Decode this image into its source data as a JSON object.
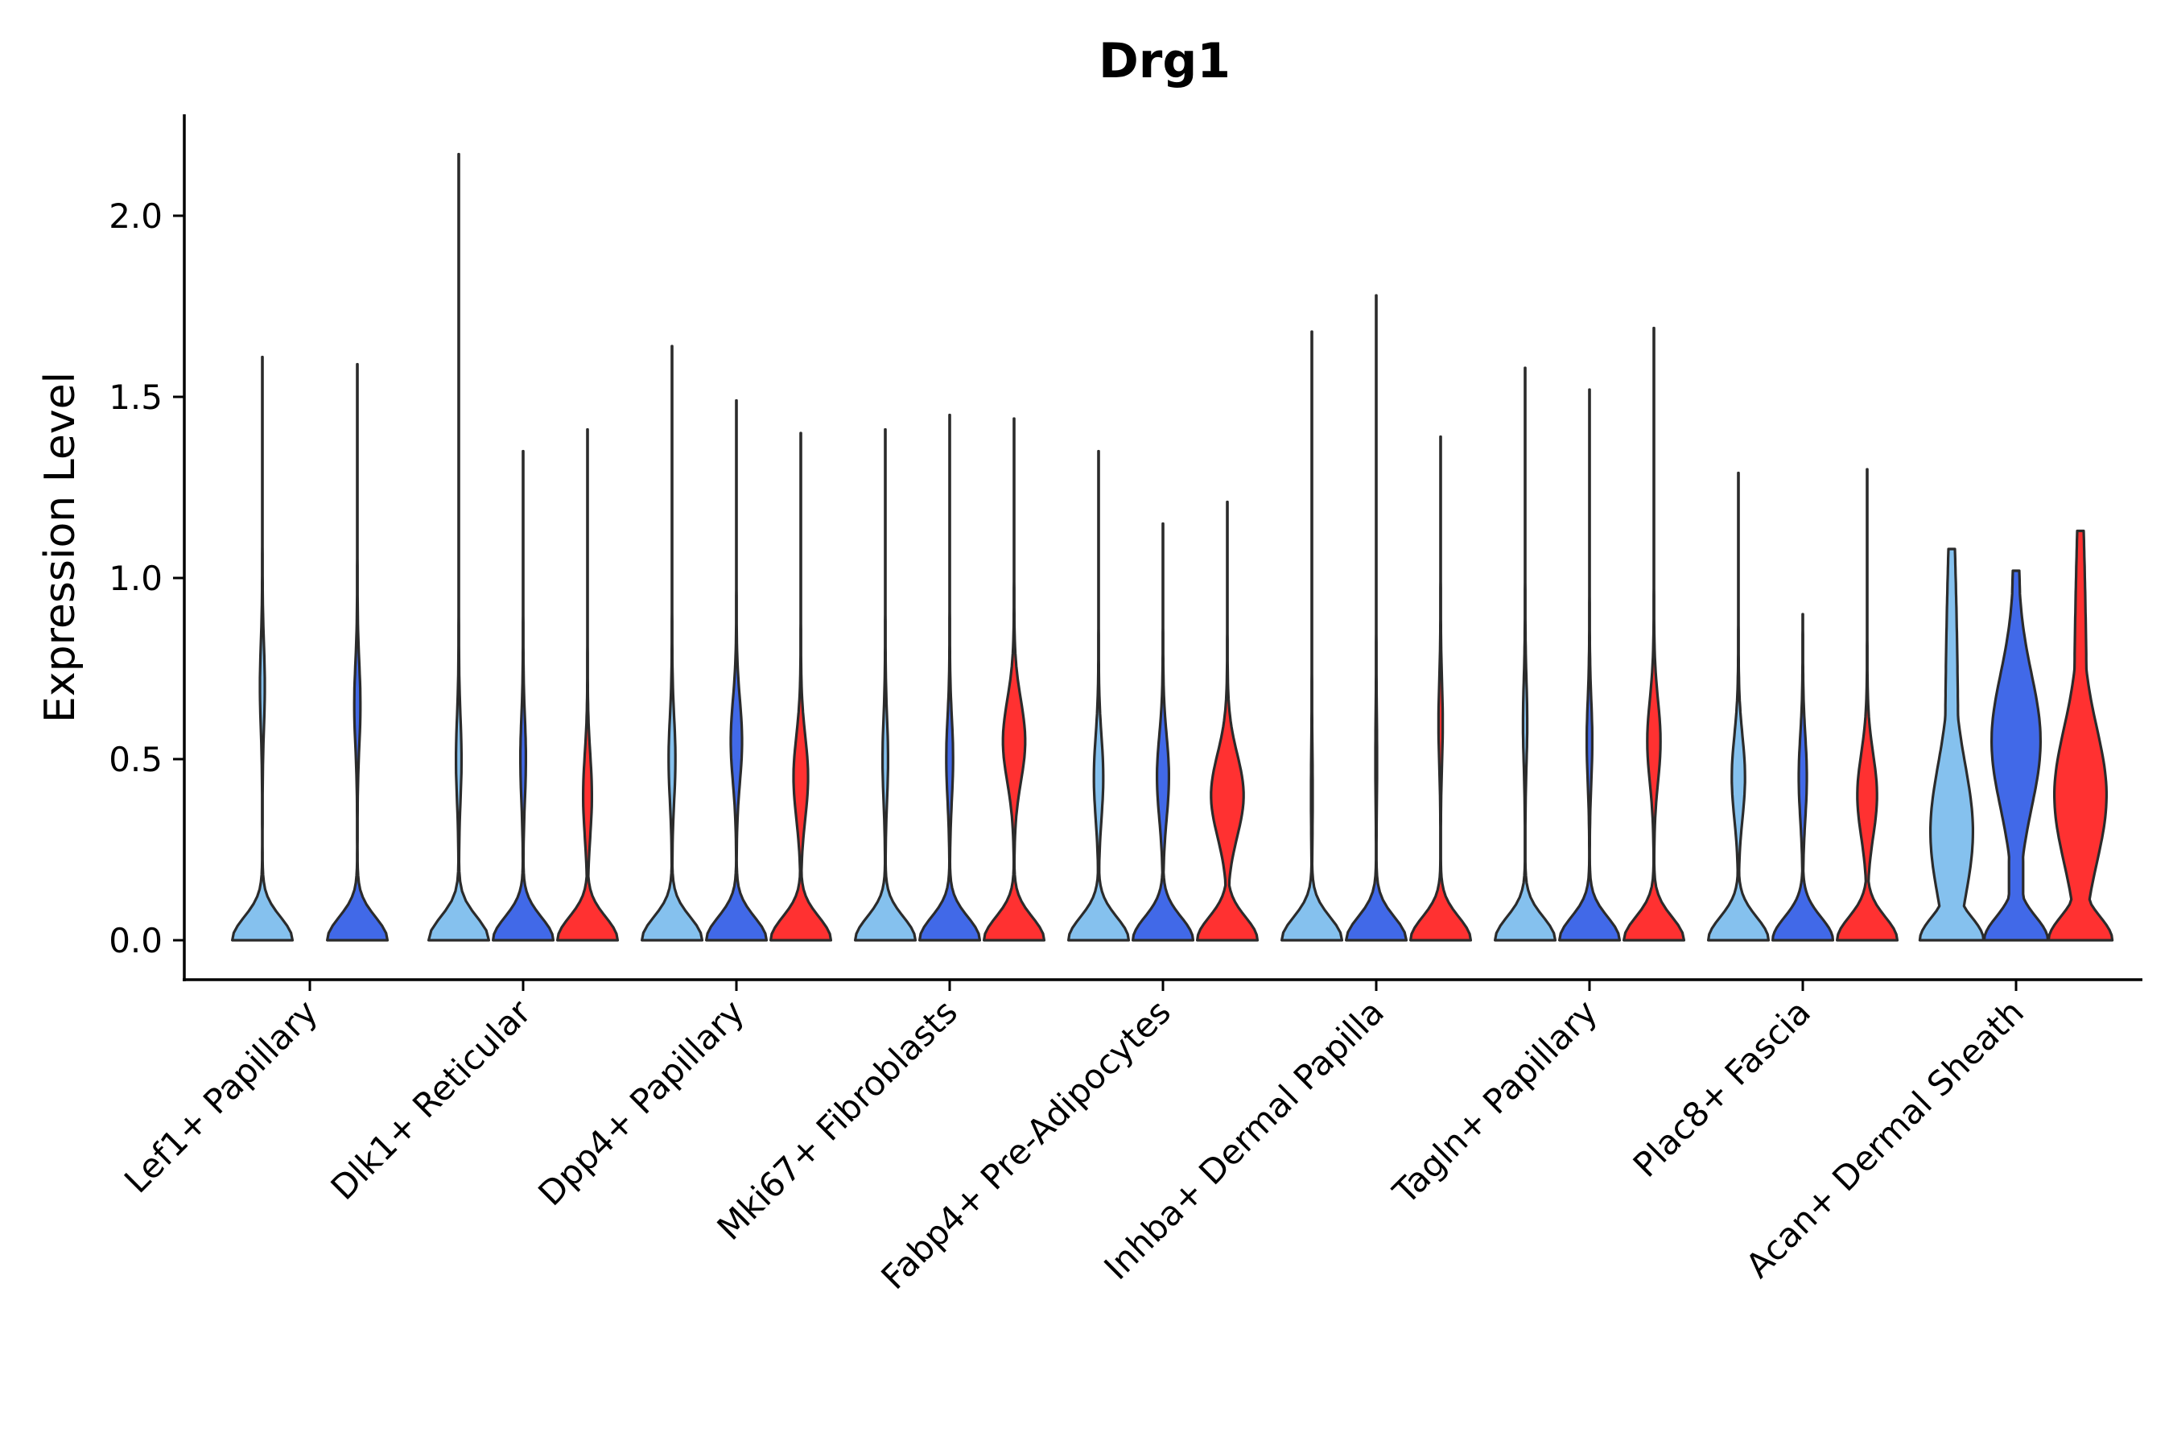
{
  "chart_data": {
    "type": "violin",
    "title": "Drg1",
    "xlabel": "",
    "ylabel": "Expression Level",
    "ylim": [
      -0.11,
      2.28
    ],
    "yticks": [
      0.0,
      0.5,
      1.0,
      1.5,
      2.0
    ],
    "ytick_labels": [
      "0.0",
      "0.5",
      "1.0",
      "1.5",
      "2.0"
    ],
    "grid": false,
    "legend": "none",
    "series_colors": [
      "#85c1ee",
      "#4169e8",
      "#ff3131"
    ],
    "categories": [
      "Lef1+ Papillary",
      "Dlk1+ Reticular",
      "Dpp4+ Papillary",
      "Mki67+ Fibroblasts",
      "Fabp4+ Pre-Adipocytes",
      "Inhba+ Dermal Papilla",
      "Tagln+ Papillary",
      "Plac8+ Fascia",
      "Acan+ Dermal Sheath"
    ],
    "groups": [
      {
        "category": "Lef1+ Papillary",
        "violins": [
          {
            "series": 0,
            "max": 1.61,
            "mode": 0.7,
            "mode_width": 0.07
          },
          {
            "series": 1,
            "max": 1.59,
            "mode": 0.65,
            "mode_width": 0.09
          }
        ]
      },
      {
        "category": "Dlk1+ Reticular",
        "violins": [
          {
            "series": 0,
            "max": 2.17,
            "mode": 0.5,
            "mode_width": 0.08
          },
          {
            "series": 1,
            "max": 1.35,
            "mode": 0.5,
            "mode_width": 0.08
          },
          {
            "series": 2,
            "max": 1.41,
            "mode": 0.4,
            "mode_width": 0.13
          }
        ]
      },
      {
        "category": "Dpp4+ Papillary",
        "violins": [
          {
            "series": 0,
            "max": 1.64,
            "mode": 0.5,
            "mode_width": 0.1
          },
          {
            "series": 1,
            "max": 1.49,
            "mode": 0.55,
            "mode_width": 0.17
          },
          {
            "series": 2,
            "max": 1.4,
            "mode": 0.45,
            "mode_width": 0.22
          }
        ]
      },
      {
        "category": "Mki67+ Fibroblasts",
        "violins": [
          {
            "series": 0,
            "max": 1.41,
            "mode": 0.5,
            "mode_width": 0.08
          },
          {
            "series": 1,
            "max": 1.45,
            "mode": 0.5,
            "mode_width": 0.1
          },
          {
            "series": 2,
            "max": 1.44,
            "mode": 0.55,
            "mode_width": 0.34
          }
        ]
      },
      {
        "category": "Fabp4+ Pre-Adipocytes",
        "violins": [
          {
            "series": 0,
            "max": 1.35,
            "mode": 0.45,
            "mode_width": 0.14
          },
          {
            "series": 1,
            "max": 1.15,
            "mode": 0.45,
            "mode_width": 0.18
          },
          {
            "series": 2,
            "max": 1.21,
            "mode": 0.4,
            "mode_width": 0.5
          }
        ]
      },
      {
        "category": "Inhba+ Dermal Papilla",
        "violins": [
          {
            "series": 0,
            "max": 1.68,
            "mode": 0.4,
            "mode_width": 0.02
          },
          {
            "series": 1,
            "max": 1.78,
            "mode": 0.5,
            "mode_width": 0.02
          },
          {
            "series": 2,
            "max": 1.39,
            "mode": 0.6,
            "mode_width": 0.06
          }
        ]
      },
      {
        "category": "Tagln+ Papillary",
        "violins": [
          {
            "series": 0,
            "max": 1.58,
            "mode": 0.6,
            "mode_width": 0.06
          },
          {
            "series": 1,
            "max": 1.52,
            "mode": 0.55,
            "mode_width": 0.08
          },
          {
            "series": 2,
            "max": 1.69,
            "mode": 0.55,
            "mode_width": 0.2
          }
        ]
      },
      {
        "category": "Plac8+ Fascia",
        "violins": [
          {
            "series": 0,
            "max": 1.29,
            "mode": 0.45,
            "mode_width": 0.2
          },
          {
            "series": 1,
            "max": 0.9,
            "mode": 0.45,
            "mode_width": 0.12
          },
          {
            "series": 2,
            "max": 1.3,
            "mode": 0.4,
            "mode_width": 0.3
          }
        ]
      },
      {
        "category": "Acan+ Dermal Sheath",
        "violins": [
          {
            "series": 0,
            "max": 1.08,
            "mode": 0.3,
            "mode_width": 0.6,
            "flat_top": true
          },
          {
            "series": 1,
            "max": 1.02,
            "mode": 0.55,
            "mode_width": 0.7,
            "flat_top": true
          },
          {
            "series": 2,
            "max": 1.13,
            "mode": 0.4,
            "mode_width": 0.75,
            "flat_top": true
          }
        ]
      }
    ]
  }
}
